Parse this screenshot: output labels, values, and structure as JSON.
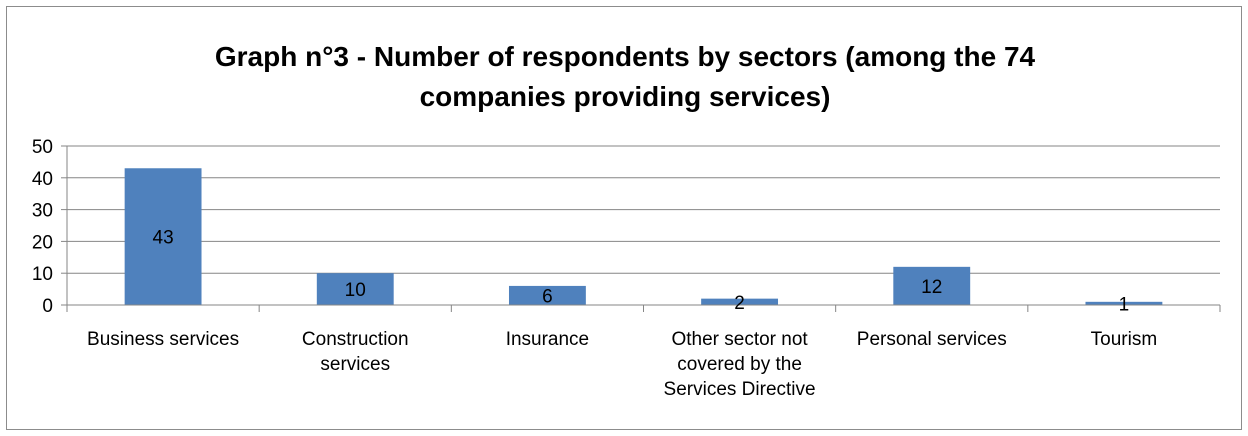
{
  "chart_data": {
    "type": "bar",
    "title": "Graph n°3 - Number of respondents by sectors (among the 74 companies providing services)",
    "title_lines": [
      "Graph n°3 - Number of respondents by sectors (among the 74",
      "companies providing services)"
    ],
    "categories": [
      "Business services",
      "Construction services",
      "Insurance",
      "Other sector not covered by the Services Directive",
      "Personal services",
      "Tourism"
    ],
    "category_lines": [
      [
        "Business services"
      ],
      [
        "Construction",
        "services"
      ],
      [
        "Insurance"
      ],
      [
        "Other sector not",
        "covered by the",
        "Services Directive"
      ],
      [
        "Personal services"
      ],
      [
        "Tourism"
      ]
    ],
    "values": [
      43,
      10,
      6,
      2,
      12,
      1
    ],
    "data_labels": [
      "43",
      "10",
      "6",
      "2",
      "12",
      "1"
    ],
    "ylim": [
      0,
      50
    ],
    "yticks": [
      0,
      10,
      20,
      30,
      40,
      50
    ],
    "grid": true,
    "legend": "none",
    "bar_color": "#4f81bd",
    "grid_color": "#868686"
  }
}
